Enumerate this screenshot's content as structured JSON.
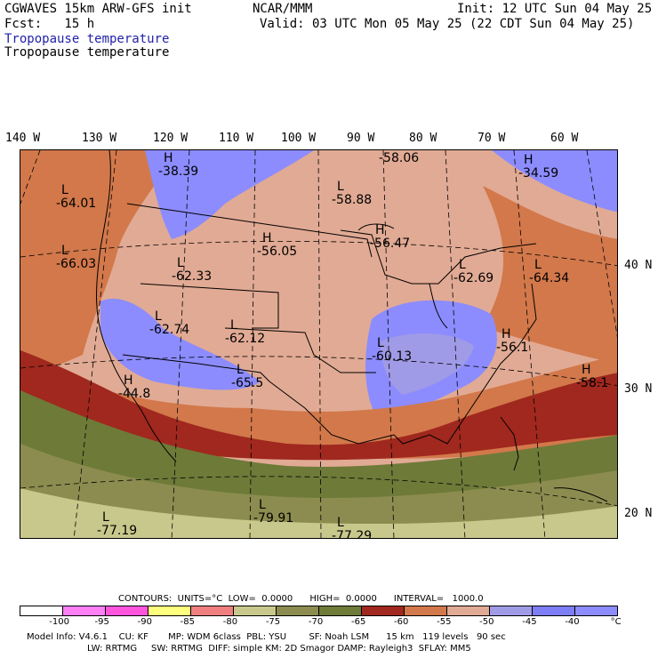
{
  "header": {
    "model": "CGWAVES 15km ARW-GFS init",
    "fcst": "Fcst:   15 h",
    "org": "NCAR/MMM",
    "init": "Init: 12 UTC Sun 04 May 25",
    "valid": "Valid: 03 UTC Mon 05 May 25 (22 CDT Sun 04 May 25)",
    "field_title_1": "Tropopause temperature",
    "field_title_2": "Tropopause temperature"
  },
  "axes": {
    "lon_labels": [
      "140 W",
      "130 W",
      "120 W",
      "110 W",
      "100 W",
      "90 W",
      "80 W",
      "70 W",
      "60 W"
    ],
    "lat_labels": [
      "40 N",
      "30 N",
      "20 N"
    ]
  },
  "extrema": [
    {
      "mark": "H",
      "value": "-38.39"
    },
    {
      "mark": "",
      "value": "-58.06"
    },
    {
      "mark": "H",
      "value": "-34.59"
    },
    {
      "mark": "L",
      "value": "-64.01"
    },
    {
      "mark": "L",
      "value": "-58.88"
    },
    {
      "mark": "H",
      "value": "-56.47"
    },
    {
      "mark": "H",
      "value": "-56.05"
    },
    {
      "mark": "L",
      "value": "-66.03"
    },
    {
      "mark": "L",
      "value": "-62.33"
    },
    {
      "mark": "L",
      "value": "-62.69"
    },
    {
      "mark": "L",
      "value": "-64.34"
    },
    {
      "mark": "L",
      "value": "-62.74"
    },
    {
      "mark": "L",
      "value": "-62.12"
    },
    {
      "mark": "L",
      "value": "-60.13"
    },
    {
      "mark": "H",
      "value": "-56.1"
    },
    {
      "mark": "L",
      "value": "-65.5"
    },
    {
      "mark": "H",
      "value": "-44.8"
    },
    {
      "mark": "H",
      "value": "-58.1"
    },
    {
      "mark": "L",
      "value": "-79.91"
    },
    {
      "mark": "L",
      "value": "-77.19"
    },
    {
      "mark": "L",
      "value": "-77.29"
    }
  ],
  "contours": {
    "text": "CONTOURS:  UNITS=°C  LOW=  0.0000      HIGH=  0.0000      INTERVAL=   1000.0"
  },
  "colorbar": {
    "colors": [
      "#ffffff",
      "#ff7ff7",
      "#ff55dd",
      "#ffff7f",
      "#f08080",
      "#c8c88c",
      "#8c8c50",
      "#6e7a38",
      "#a0281e",
      "#d2784b",
      "#e1aa94",
      "#a09be6",
      "#7d7df5",
      "#8c8cff"
    ],
    "labels": [
      "-100",
      "-95",
      "-90",
      "-85",
      "-80",
      "-75",
      "-70",
      "-65",
      "-60",
      "-55",
      "-50",
      "-45",
      "-40",
      "°C"
    ]
  },
  "model_info": {
    "line1": "Model Info: V4.6.1    CU: KF       MP: WDM 6class  PBL: YSU        SF: Noah LSM      15 km   119 levels   90 sec",
    "line2": "LW: RRTMG     SW: RRTMG  DIFF: simple KM: 2D Smagor DAMP: Rayleigh3  SFLAY: MM5"
  },
  "field_colors": {
    "warm_band": "#a0281e",
    "orange": "#d2784b",
    "salmon": "#e1aa94",
    "lavender": "#a09be6",
    "blue": "#8c8cff",
    "olive_dark": "#6e7a38",
    "olive": "#8c8c50",
    "khaki": "#c8c88c"
  }
}
